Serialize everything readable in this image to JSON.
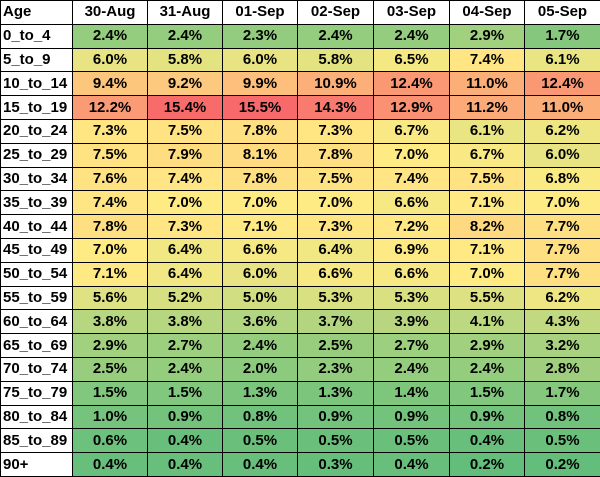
{
  "table": {
    "headers": [
      "Age",
      "30-Aug",
      "31-Aug",
      "01-Sep",
      "02-Sep",
      "03-Sep",
      "04-Sep",
      "05-Sep"
    ],
    "rows": [
      {
        "age": "0_to_4",
        "values": [
          "2.4%",
          "2.4%",
          "2.3%",
          "2.4%",
          "2.4%",
          "2.9%",
          "1.7%"
        ]
      },
      {
        "age": "5_to_9",
        "values": [
          "6.0%",
          "5.8%",
          "6.0%",
          "5.8%",
          "6.5%",
          "7.4%",
          "6.1%"
        ]
      },
      {
        "age": "10_to_14",
        "values": [
          "9.4%",
          "9.2%",
          "9.9%",
          "10.9%",
          "12.4%",
          "11.0%",
          "12.4%"
        ]
      },
      {
        "age": "15_to_19",
        "values": [
          "12.2%",
          "15.4%",
          "15.5%",
          "14.3%",
          "12.9%",
          "11.2%",
          "11.0%"
        ]
      },
      {
        "age": "20_to_24",
        "values": [
          "7.3%",
          "7.5%",
          "7.8%",
          "7.3%",
          "6.7%",
          "6.1%",
          "6.2%"
        ]
      },
      {
        "age": "25_to_29",
        "values": [
          "7.5%",
          "7.9%",
          "8.1%",
          "7.8%",
          "7.0%",
          "6.7%",
          "6.0%"
        ]
      },
      {
        "age": "30_to_34",
        "values": [
          "7.6%",
          "7.4%",
          "7.8%",
          "7.5%",
          "7.4%",
          "7.5%",
          "6.8%"
        ]
      },
      {
        "age": "35_to_39",
        "values": [
          "7.4%",
          "7.0%",
          "7.0%",
          "7.0%",
          "6.6%",
          "7.1%",
          "7.0%"
        ]
      },
      {
        "age": "40_to_44",
        "values": [
          "7.8%",
          "7.3%",
          "7.1%",
          "7.3%",
          "7.2%",
          "8.2%",
          "7.7%"
        ]
      },
      {
        "age": "45_to_49",
        "values": [
          "7.0%",
          "6.4%",
          "6.6%",
          "6.4%",
          "6.9%",
          "7.1%",
          "7.7%"
        ]
      },
      {
        "age": "50_to_54",
        "values": [
          "7.1%",
          "6.4%",
          "6.0%",
          "6.6%",
          "6.6%",
          "7.0%",
          "7.7%"
        ]
      },
      {
        "age": "55_to_59",
        "values": [
          "5.6%",
          "5.2%",
          "5.0%",
          "5.3%",
          "5.3%",
          "5.5%",
          "6.2%"
        ]
      },
      {
        "age": "60_to_64",
        "values": [
          "3.8%",
          "3.8%",
          "3.6%",
          "3.7%",
          "3.9%",
          "4.1%",
          "4.3%"
        ]
      },
      {
        "age": "65_to_69",
        "values": [
          "2.9%",
          "2.7%",
          "2.4%",
          "2.5%",
          "2.7%",
          "2.9%",
          "3.2%"
        ]
      },
      {
        "age": "70_to_74",
        "values": [
          "2.5%",
          "2.4%",
          "2.0%",
          "2.3%",
          "2.4%",
          "2.4%",
          "2.8%"
        ]
      },
      {
        "age": "75_to_79",
        "values": [
          "1.5%",
          "1.5%",
          "1.3%",
          "1.3%",
          "1.4%",
          "1.5%",
          "1.7%"
        ]
      },
      {
        "age": "80_to_84",
        "values": [
          "1.0%",
          "0.9%",
          "0.8%",
          "0.9%",
          "0.9%",
          "0.9%",
          "0.8%"
        ]
      },
      {
        "age": "85_to_89",
        "values": [
          "0.6%",
          "0.4%",
          "0.5%",
          "0.5%",
          "0.5%",
          "0.4%",
          "0.5%"
        ]
      },
      {
        "age": "90+",
        "values": [
          "0.4%",
          "0.4%",
          "0.4%",
          "0.3%",
          "0.4%",
          "0.2%",
          "0.2%"
        ]
      }
    ],
    "color_scale": {
      "low": "#63be7b",
      "mid": "#ffeb84",
      "high": "#f8696b",
      "min": 0.2,
      "mid_value": 7.0,
      "max": 15.5
    }
  }
}
